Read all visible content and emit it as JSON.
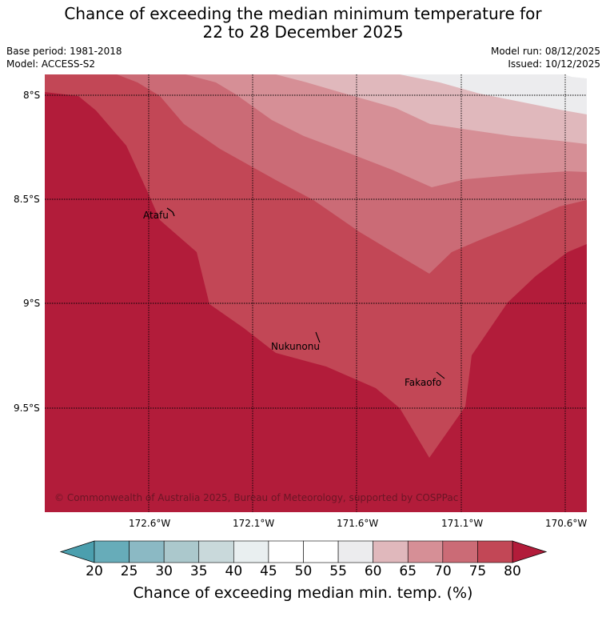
{
  "header": {
    "title_line1": "Chance of exceeding the median minimum temperature for",
    "title_line2": "22 to 28 December 2025",
    "base_period": "Base period: 1981-2018",
    "model": "Model: ACCESS-S2",
    "model_run": "Model run: 08/12/2025",
    "issued": "Issued: 10/12/2025"
  },
  "map": {
    "lat_labels": [
      "8°S",
      "8.5°S",
      "9°S",
      "9.5°S"
    ],
    "lon_labels": [
      "172.6°W",
      "172.1°W",
      "171.6°W",
      "171.1°W",
      "170.6°W"
    ],
    "places": [
      "Atafu",
      "Nukunonu",
      "Fakaofo"
    ],
    "copyright": "© Commonwealth of Australia 2025, Bureau of Meteorology, supported by COSPPac",
    "zone_colors": {
      "80_plus": "#b21c3a",
      "75_80": "#c24756",
      "70_75": "#cb6b76",
      "65_70": "#d68f96",
      "60_65": "#e0b8bc",
      "55_60": "#ececee"
    }
  },
  "colorbar": {
    "tick_labels": [
      "20",
      "25",
      "30",
      "35",
      "40",
      "45",
      "50",
      "55",
      "60",
      "65",
      "70",
      "75",
      "80"
    ],
    "colors": [
      "#67acb9",
      "#8bb9c4",
      "#abc8cc",
      "#c9d9db",
      "#e9eff0",
      "#ffffff",
      "#ffffff",
      "#ececee",
      "#e0b8bc",
      "#d68f96",
      "#cb6b76",
      "#c24756"
    ],
    "low_extend_color": "#4b9fae",
    "high_extend_color": "#b21c3a",
    "title": "Chance of exceeding median min. temp. (%)"
  }
}
